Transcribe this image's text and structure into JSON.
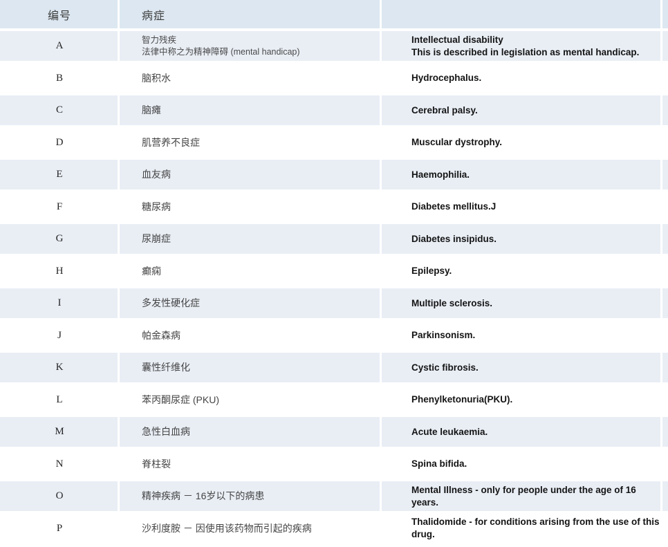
{
  "colors": {
    "header_bg": "#dce7f1",
    "alt_row_bg": "#e9eef5",
    "row_bg": "#ffffff",
    "english_text": "#141414",
    "chinese_text": "#454545"
  },
  "table": {
    "header": {
      "id_label": "编号",
      "disease_label": "病症",
      "english_label": ""
    },
    "rows": [
      {
        "id": "A",
        "zh": [
          "智力残疾",
          "法律中称之为精神障碍 (mental handicap)"
        ],
        "en": [
          "Intellectual disability",
          "This is described in legislation as mental handicap."
        ]
      },
      {
        "id": "B",
        "zh": [
          "脑积水"
        ],
        "en": [
          "Hydrocephalus."
        ]
      },
      {
        "id": "C",
        "zh": [
          "脑瘫"
        ],
        "en": [
          "Cerebral palsy."
        ]
      },
      {
        "id": "D",
        "zh": [
          "肌营养不良症"
        ],
        "en": [
          "Muscular dystrophy."
        ]
      },
      {
        "id": "E",
        "zh": [
          "血友病"
        ],
        "en": [
          "Haemophilia."
        ]
      },
      {
        "id": "F",
        "zh": [
          "糖尿病"
        ],
        "en": [
          "Diabetes mellitus.J"
        ]
      },
      {
        "id": "G",
        "zh": [
          "尿崩症"
        ],
        "en": [
          "Diabetes insipidus."
        ]
      },
      {
        "id": "H",
        "zh": [
          "癫痫"
        ],
        "en": [
          "Epilepsy."
        ]
      },
      {
        "id": "I",
        "zh": [
          "多发性硬化症"
        ],
        "en": [
          "Multiple sclerosis."
        ]
      },
      {
        "id": "J",
        "zh": [
          "帕金森病"
        ],
        "en": [
          "Parkinsonism."
        ]
      },
      {
        "id": "K",
        "zh": [
          "囊性纤维化"
        ],
        "en": [
          "Cystic fibrosis."
        ]
      },
      {
        "id": "L",
        "zh": [
          "苯丙酮尿症 (PKU)"
        ],
        "en": [
          "Phenylketonuria(PKU)."
        ]
      },
      {
        "id": "M",
        "zh": [
          "急性白血病"
        ],
        "en": [
          "Acute leukaemia."
        ]
      },
      {
        "id": "N",
        "zh": [
          "脊柱裂"
        ],
        "en": [
          "Spina bifida."
        ]
      },
      {
        "id": "O",
        "zh": [
          "精神疾病 － 16岁以下的病患"
        ],
        "en": [
          "Mental Illness - only for people under the age of 16 years."
        ]
      },
      {
        "id": "P",
        "zh": [
          "沙利度胺 － 因使用该药物而引起的疾病"
        ],
        "en": [
          "Thalidomide - for conditions arising from the use of this drug."
        ]
      }
    ]
  }
}
